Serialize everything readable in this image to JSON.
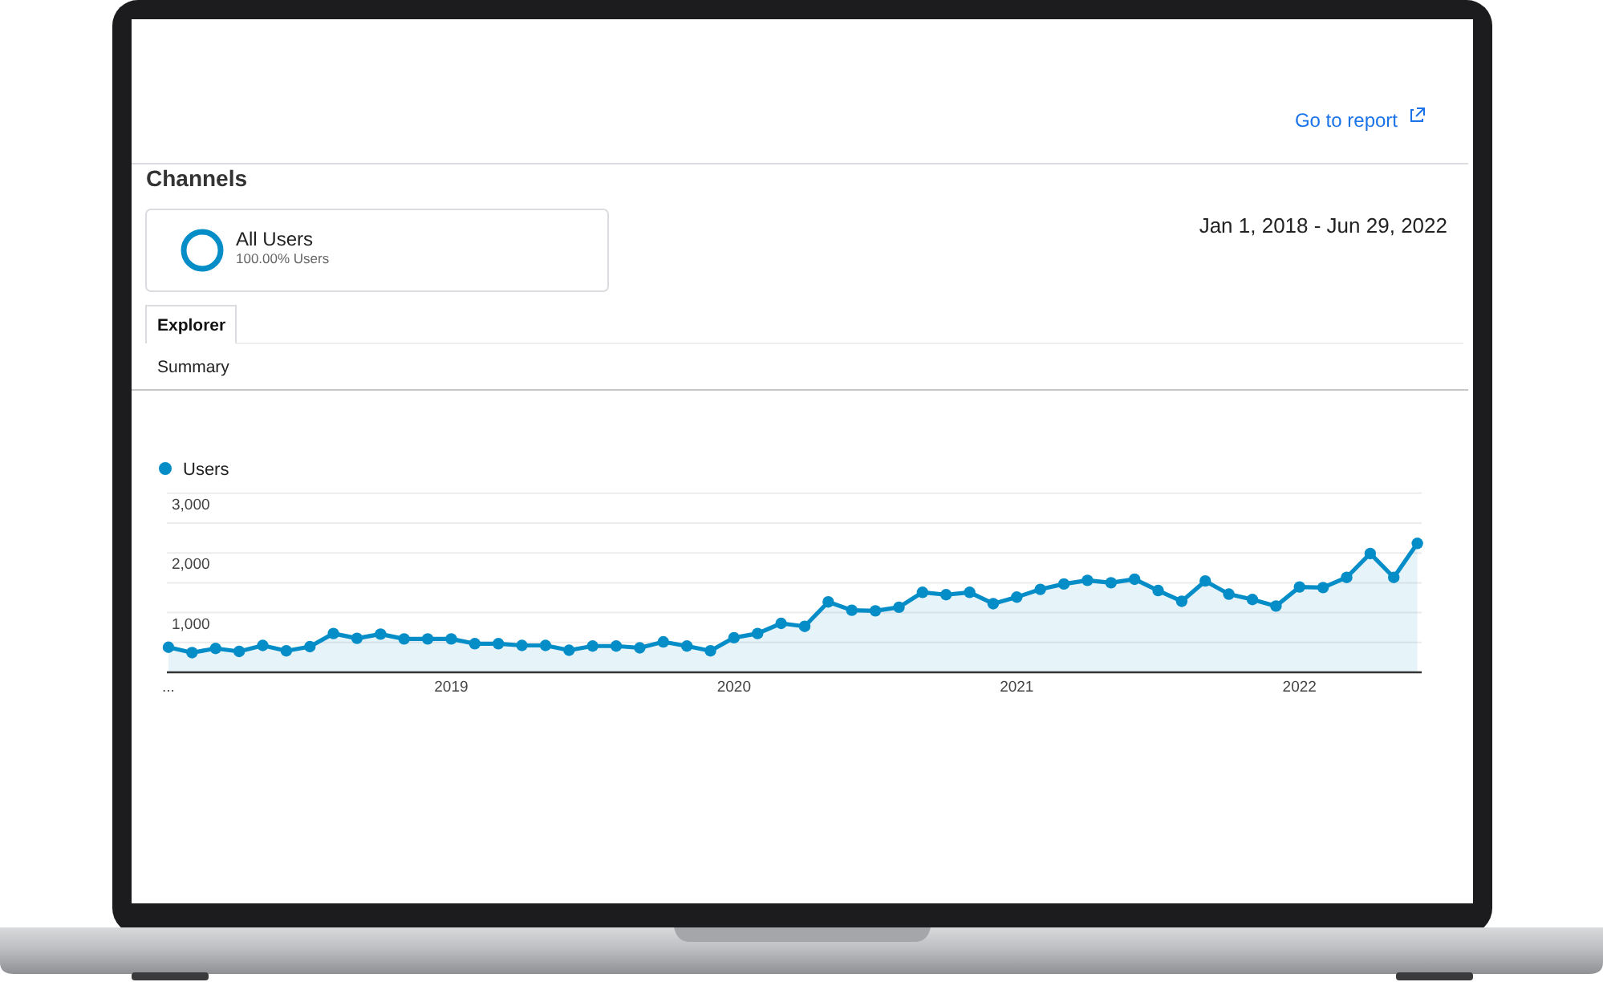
{
  "chart_data": {
    "type": "area",
    "title": "Channels",
    "subtitle": "Jan 1, 2018 - Jun 29, 2022",
    "annotations": [
      "Go to report",
      "All Users",
      "100.00% Users",
      "Explorer",
      "Summary"
    ],
    "categories": [
      "...",
      null,
      null,
      null,
      null,
      null,
      null,
      null,
      null,
      null,
      null,
      null,
      "2019",
      null,
      null,
      null,
      null,
      null,
      null,
      null,
      null,
      null,
      null,
      null,
      "2020",
      null,
      null,
      null,
      null,
      null,
      null,
      null,
      null,
      null,
      null,
      null,
      "2021",
      null,
      null,
      null,
      null,
      null,
      null,
      null,
      null,
      null,
      null,
      null,
      "2022",
      null,
      null,
      null,
      null,
      null
    ],
    "series": [
      {
        "name": "Users",
        "color": "#058dc7",
        "values": [
          420,
          330,
          400,
          350,
          450,
          360,
          430,
          650,
          570,
          640,
          560,
          560,
          560,
          480,
          480,
          450,
          450,
          370,
          440,
          440,
          410,
          510,
          440,
          360,
          580,
          650,
          820,
          770,
          1180,
          1040,
          1030,
          1090,
          1340,
          1300,
          1340,
          1150,
          1260,
          1390,
          1480,
          1540,
          1500,
          1560,
          1370,
          1190,
          1530,
          1310,
          1220,
          1110,
          1430,
          1420,
          1590,
          1990,
          1590,
          2160
        ]
      }
    ],
    "ylim": [
      0,
      3000
    ],
    "yticks": [
      {
        "value": 500,
        "label": null
      },
      {
        "value": 1000,
        "label": "1,000"
      },
      {
        "value": 1500,
        "label": null
      },
      {
        "value": 2000,
        "label": "2,000"
      },
      {
        "value": 2500,
        "label": null
      },
      {
        "value": 3000,
        "label": "3,000"
      }
    ],
    "grid": "y",
    "legend": "top left",
    "marker": "circle"
  }
}
